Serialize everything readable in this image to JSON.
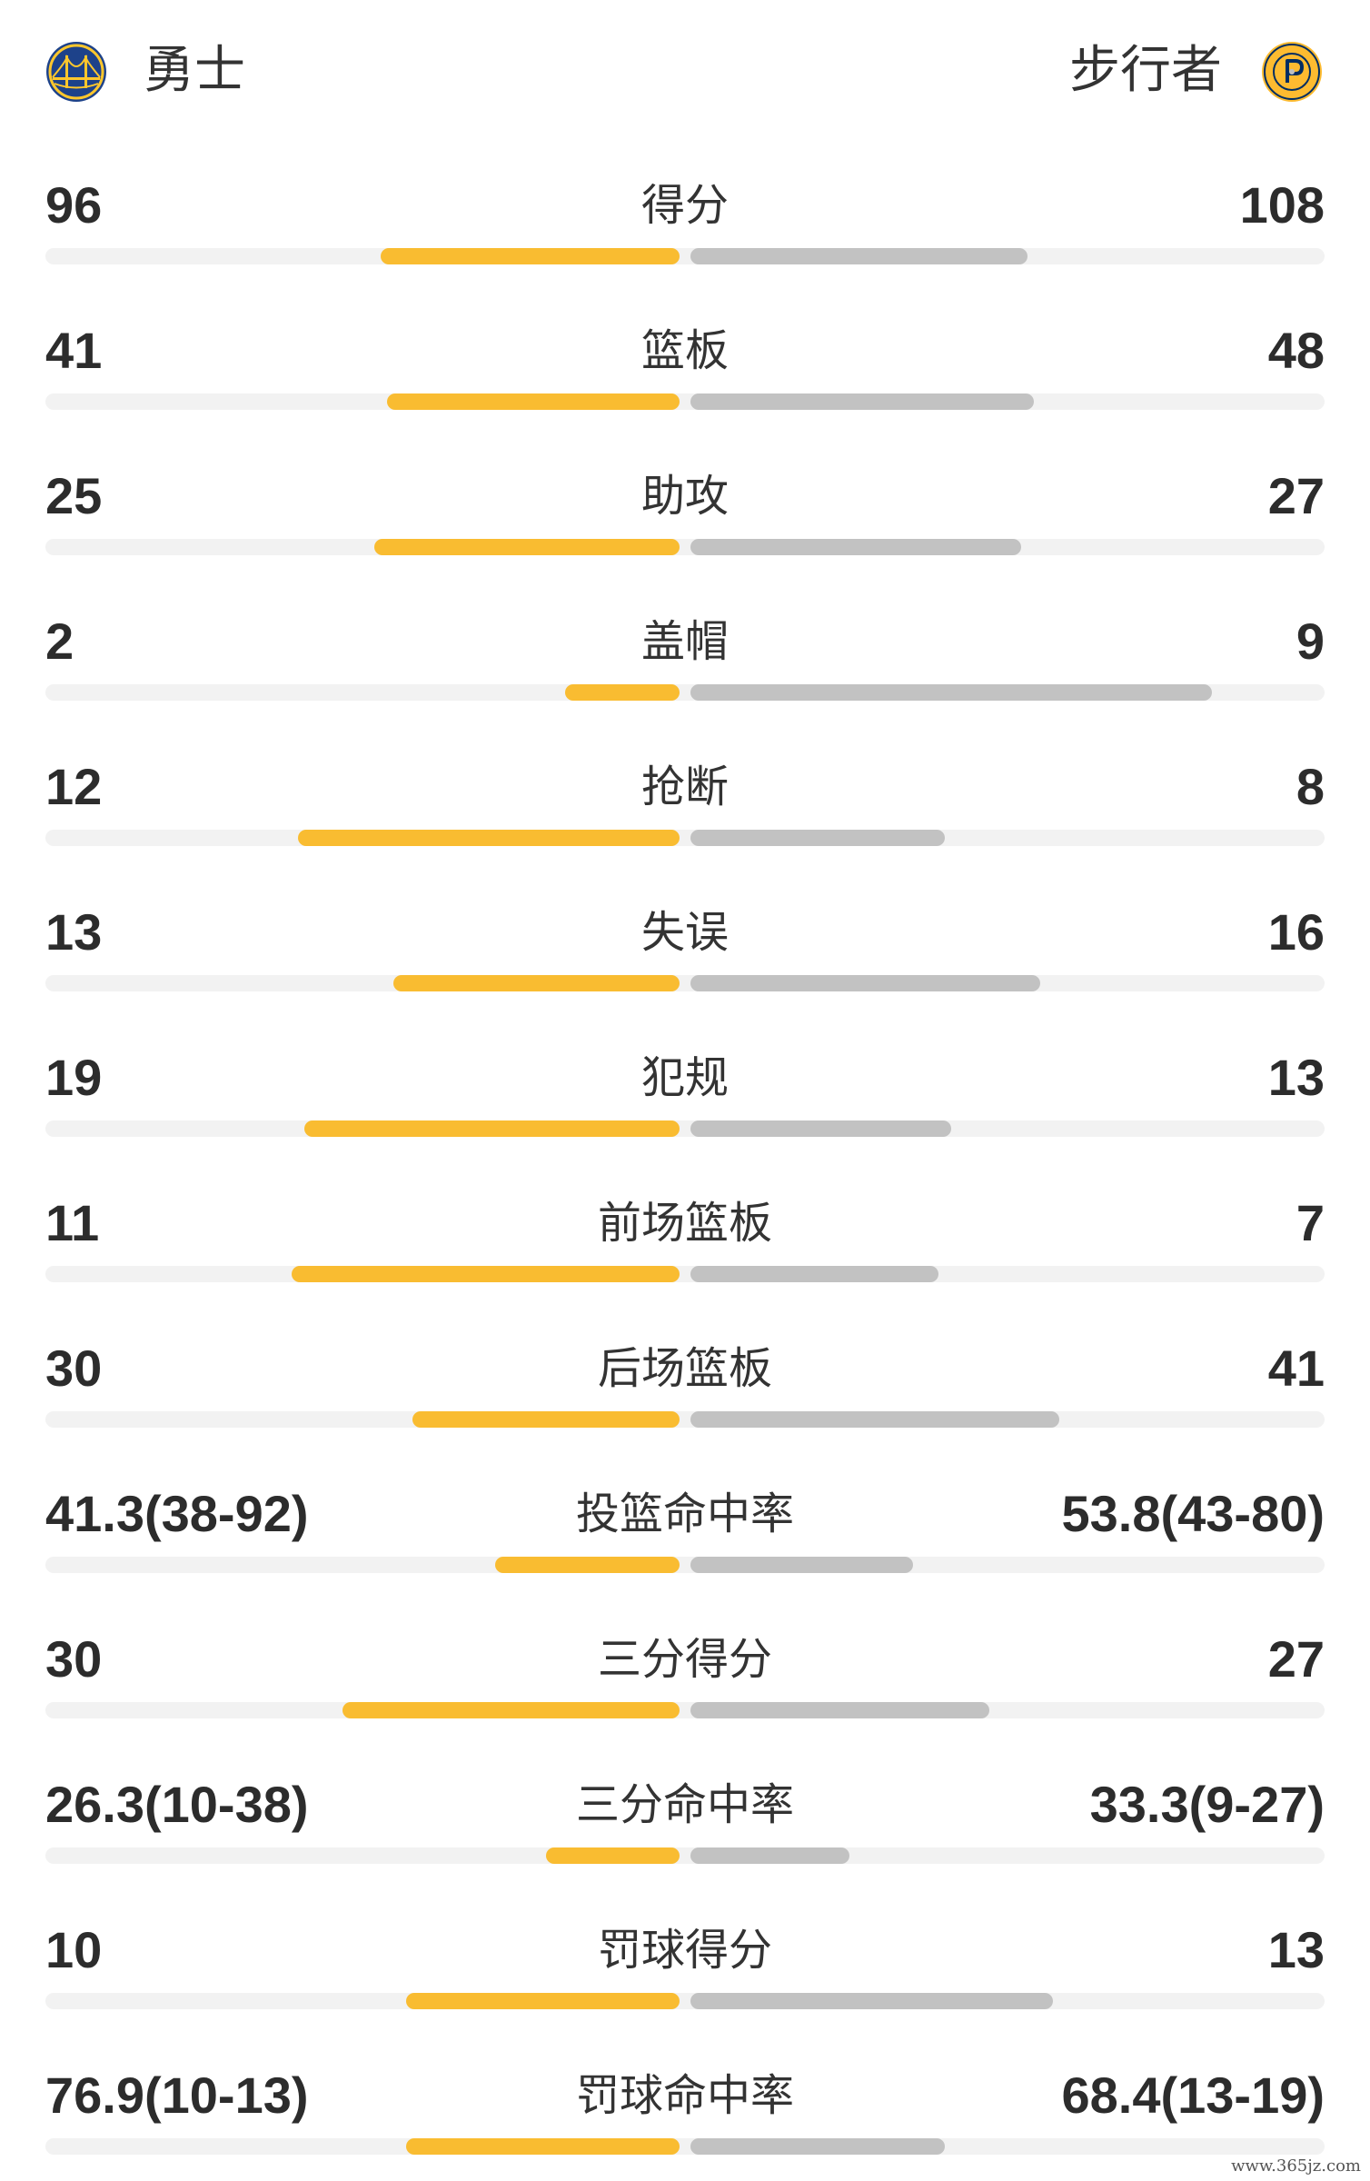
{
  "home_team": {
    "name": "勇士",
    "logo_icon": "warriors-logo",
    "bar_color": "#f9bc31"
  },
  "away_team": {
    "name": "步行者",
    "logo_icon": "pacers-logo",
    "bar_color": "#c2c2c2"
  },
  "stats": [
    {
      "label": "得分",
      "home": "96",
      "away": "108",
      "home_share": 0.47,
      "away_share": 0.53
    },
    {
      "label": "篮板",
      "home": "41",
      "away": "48",
      "home_share": 0.46,
      "away_share": 0.54
    },
    {
      "label": "助攻",
      "home": "25",
      "away": "27",
      "home_share": 0.48,
      "away_share": 0.52
    },
    {
      "label": "盖帽",
      "home": "2",
      "away": "9",
      "home_share": 0.18,
      "away_share": 0.82
    },
    {
      "label": "抢断",
      "home": "12",
      "away": "8",
      "home_share": 0.6,
      "away_share": 0.4
    },
    {
      "label": "失误",
      "home": "13",
      "away": "16",
      "home_share": 0.45,
      "away_share": 0.55
    },
    {
      "label": "犯规",
      "home": "19",
      "away": "13",
      "home_share": 0.59,
      "away_share": 0.41
    },
    {
      "label": "前场篮板",
      "home": "11",
      "away": "7",
      "home_share": 0.61,
      "away_share": 0.39
    },
    {
      "label": "后场篮板",
      "home": "30",
      "away": "41",
      "home_share": 0.42,
      "away_share": 0.58
    },
    {
      "label": "投篮命中率",
      "home": "41.3(38-92)",
      "away": "53.8(43-80)",
      "home_share": 0.29,
      "away_share": 0.35
    },
    {
      "label": "三分得分",
      "home": "30",
      "away": "27",
      "home_share": 0.53,
      "away_share": 0.47
    },
    {
      "label": "三分命中率",
      "home": "26.3(10-38)",
      "away": "33.3(9-27)",
      "home_share": 0.21,
      "away_share": 0.25
    },
    {
      "label": "罚球得分",
      "home": "10",
      "away": "13",
      "home_share": 0.43,
      "away_share": 0.57
    },
    {
      "label": "罚球命中率",
      "home": "76.9(10-13)",
      "away": "68.4(13-19)",
      "home_share": 0.43,
      "away_share": 0.4
    }
  ],
  "watermark": "www.365jz.com"
}
